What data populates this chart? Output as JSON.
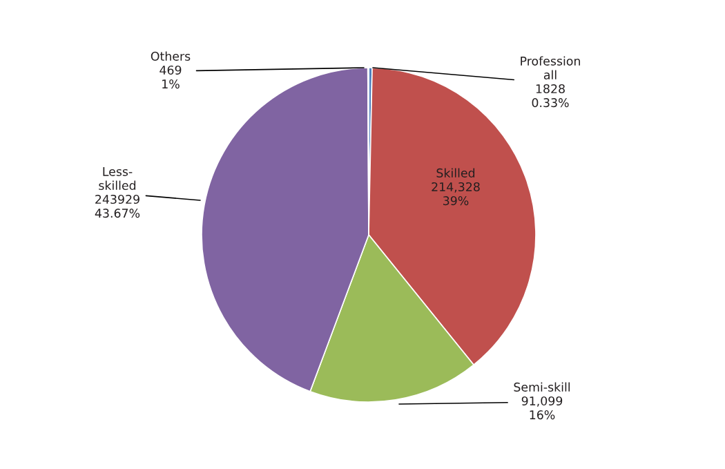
{
  "chart_data": {
    "type": "pie",
    "categories": [
      "Profession all",
      "Skilled",
      "Semi-skill",
      "Less-skilled",
      "Others"
    ],
    "values": [
      1828,
      214328,
      91099,
      243929,
      469
    ],
    "colors": [
      "#4f81bd",
      "#c0504d",
      "#9bbb59",
      "#8064a2",
      "#4bacc6"
    ],
    "value_labels": [
      "1828\n0.33%",
      "214,328\n39%",
      "91,099\n16%",
      "243929\n43.67%",
      "469\n1%"
    ]
  }
}
